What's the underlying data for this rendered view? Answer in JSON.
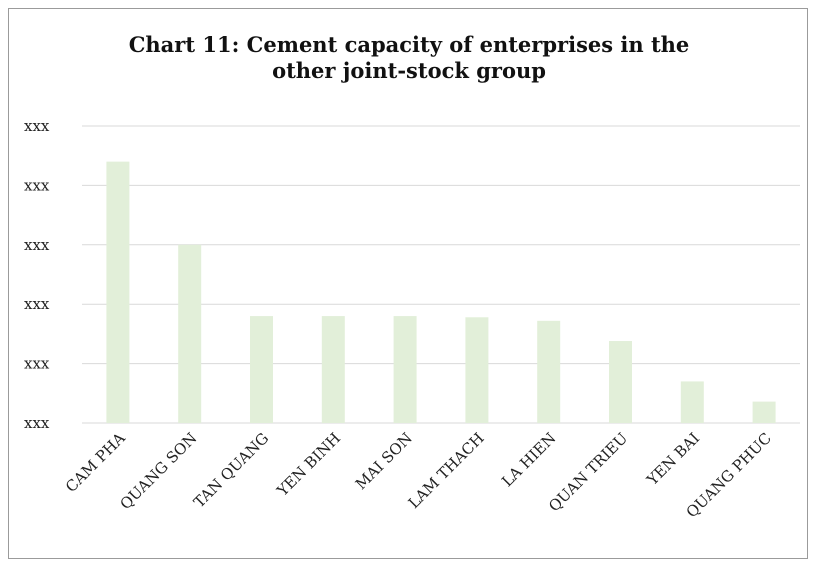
{
  "chart_data": {
    "type": "bar",
    "title_lines": [
      "Chart 11: Cement capacity of enterprises in the",
      "other joint-stock group"
    ],
    "categories": [
      "CAM PHA",
      "QUANG SON",
      "TAN QUANG",
      "YEN BINH",
      "MAI SON",
      "LAM THACH",
      "LA HIEN",
      "QUAN TRIEU",
      "YEN BAI",
      "QUANG PHUC"
    ],
    "values": [
      4.4,
      3.0,
      1.8,
      1.8,
      1.8,
      1.78,
      1.72,
      1.38,
      0.7,
      0.36
    ],
    "y_tick_labels": [
      "xxx",
      "xxx",
      "xxx",
      "xxx",
      "xxx",
      "xxx"
    ],
    "ylim": [
      0,
      5
    ],
    "grid": true,
    "legend": "none",
    "bar_color": "#e2efd9",
    "grid_color": "#d9d9d9"
  }
}
